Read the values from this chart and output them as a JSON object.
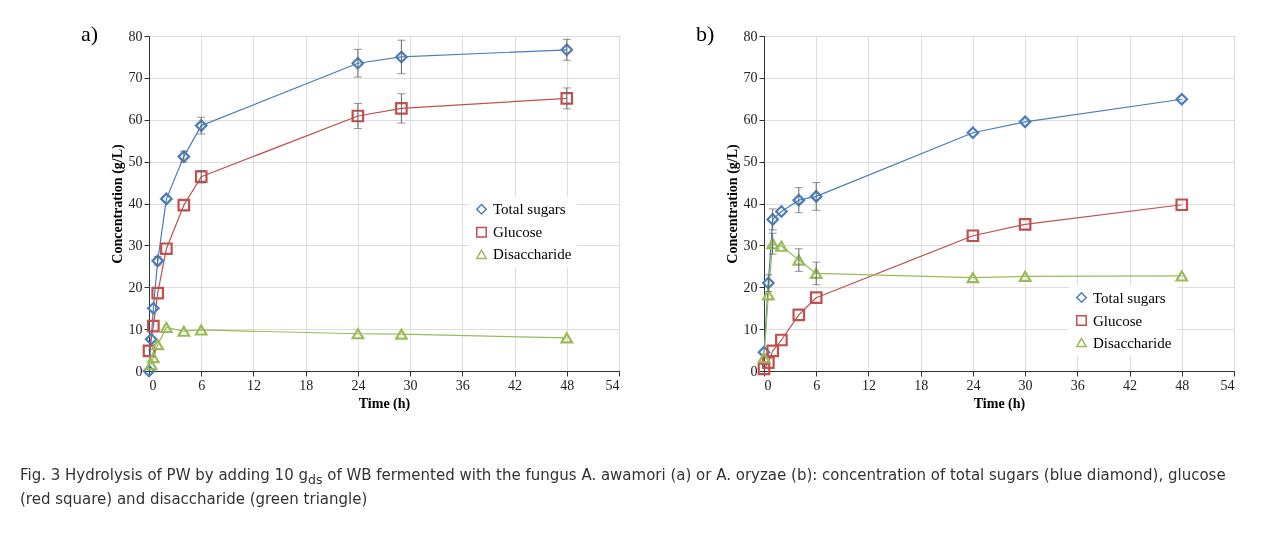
{
  "chart_data": [
    {
      "type": "line",
      "annotations": [
        "a)",
        "Fig. 3  Hydrolysis of PW by adding 10 g$_{ds}$ of WB fermented with the fungus A. awamori (a) or A. oryzae (b): concentration of total sugars (blue diamond), glucose (red square) and disaccharide (green triangle)"
      ],
      "xlabel": "Time (h)",
      "ylabel": "Concentration (g/L)",
      "xlim": [
        0,
        54
      ],
      "xticks": [
        0,
        6,
        12,
        18,
        24,
        30,
        36,
        42,
        48,
        54
      ],
      "ylim": [
        0,
        80
      ],
      "yticks": [
        0,
        10,
        20,
        30,
        40,
        50,
        60,
        70,
        80
      ],
      "grid": true,
      "legend": "right",
      "series": [
        {
          "name": "Total sugars",
          "color": "#4a7ebb",
          "marker": "diamond",
          "x": [
            0,
            0.25,
            0.5,
            1,
            2,
            4,
            6,
            24,
            29,
            48
          ],
          "values": [
            0,
            7.6,
            15,
            26.3,
            41.1,
            51.2,
            58.6,
            73.5,
            75,
            76.7
          ],
          "errors": [
            null,
            null,
            null,
            1,
            null,
            1.3,
            2,
            3.3,
            4,
            2.5
          ]
        },
        {
          "name": "Glucose",
          "color": "#c0504d",
          "marker": "square",
          "x": [
            0,
            0.5,
            1,
            2,
            4,
            6,
            24,
            29,
            48
          ],
          "values": [
            4.8,
            10.7,
            18.6,
            29.2,
            39.6,
            46.4,
            60.9,
            62.7,
            65.1
          ],
          "errors": [
            null,
            null,
            null,
            null,
            null,
            1.5,
            3,
            3.5,
            2.5
          ]
        },
        {
          "name": "Disaccharide",
          "color": "#9bbb59",
          "marker": "triangle",
          "x": [
            0.25,
            0.5,
            1,
            2,
            4,
            6,
            24,
            29,
            48
          ],
          "values": [
            1.5,
            3.2,
            6.3,
            10.4,
            9.5,
            9.8,
            8.9,
            8.8,
            7.9
          ]
        }
      ]
    },
    {
      "type": "line",
      "annotations": [
        "b)"
      ],
      "xlabel": "Time (h)",
      "ylabel": "Concentration (g/L)",
      "xlim": [
        0,
        54
      ],
      "xticks": [
        0,
        6,
        12,
        18,
        24,
        30,
        36,
        42,
        48,
        54
      ],
      "ylim": [
        0,
        80
      ],
      "yticks": [
        0,
        10,
        20,
        30,
        40,
        50,
        60,
        70,
        80
      ],
      "grid": true,
      "legend": "bottom right",
      "series": [
        {
          "name": "Total sugars",
          "color": "#4a7ebb",
          "marker": "diamond",
          "x": [
            0,
            0.5,
            1,
            2,
            4,
            6,
            24,
            30,
            48
          ],
          "values": [
            4.5,
            21,
            36.2,
            38.1,
            40.8,
            41.7,
            56.9,
            59.5,
            64.9
          ],
          "errors": [
            null,
            2,
            2.5,
            null,
            3,
            3.3,
            null,
            null,
            null
          ]
        },
        {
          "name": "Glucose",
          "color": "#c0504d",
          "marker": "square",
          "x": [
            0,
            0.5,
            1,
            2,
            4,
            6,
            24,
            30,
            48
          ],
          "values": [
            0.5,
            2,
            4.8,
            7.4,
            13.4,
            17.5,
            32.3,
            35,
            39.7
          ]
        },
        {
          "name": "Disaccharide",
          "color": "#9bbb59",
          "marker": "triangle",
          "x": [
            0,
            0.5,
            1,
            2,
            4,
            6,
            24,
            30,
            48
          ],
          "values": [
            3.2,
            18.2,
            30.4,
            29.8,
            26.5,
            23.3,
            22.3,
            22.6,
            22.7
          ],
          "errors": [
            null,
            null,
            2.5,
            null,
            2.7,
            2.7,
            null,
            null,
            null
          ]
        }
      ]
    }
  ]
}
